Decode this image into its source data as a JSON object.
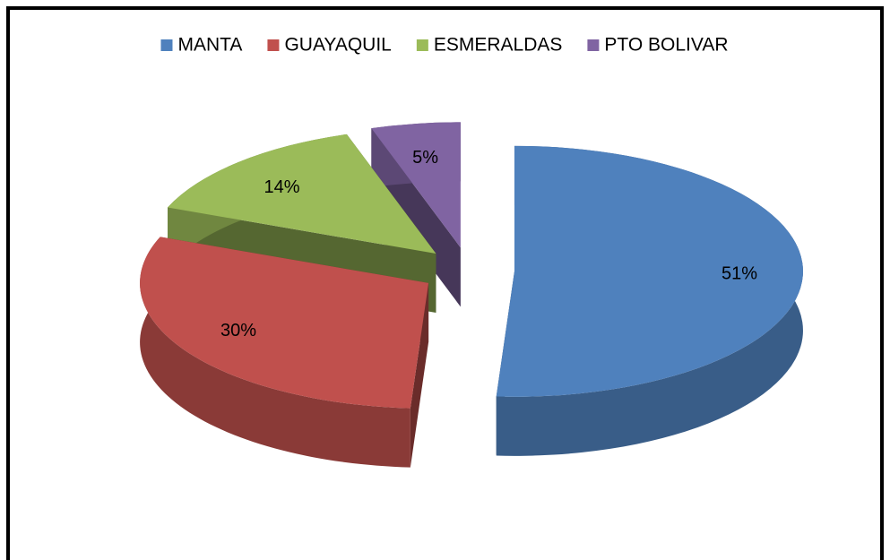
{
  "chart_data": {
    "type": "pie",
    "categories": [
      "MANTA",
      "GUAYAQUIL",
      "ESMERALDAS",
      "PTO BOLIVAR"
    ],
    "values": [
      51,
      30,
      14,
      5
    ],
    "value_labels": [
      "51%",
      "30%",
      "14%",
      "5%"
    ],
    "colors": [
      "#4f81bd",
      "#c0504d",
      "#9bbb59",
      "#8064a2"
    ],
    "legend": "top"
  }
}
